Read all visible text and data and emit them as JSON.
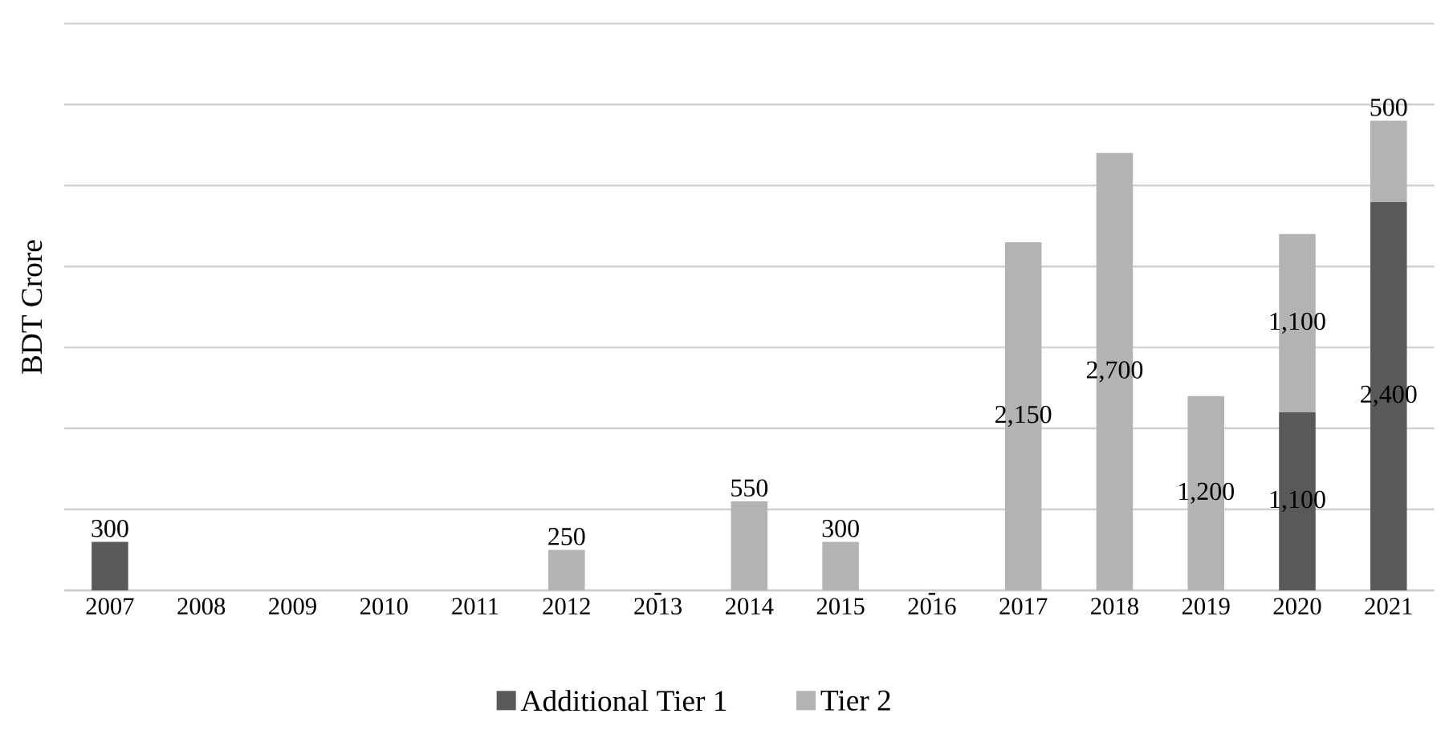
{
  "chart_data": {
    "type": "bar",
    "stacked": true,
    "ylabel": "BDT Crore",
    "categories": [
      "2007",
      "2008",
      "2009",
      "2010",
      "2011",
      "2012",
      "2013",
      "2014",
      "2015",
      "2016",
      "2017",
      "2018",
      "2019",
      "2020",
      "2021"
    ],
    "series": [
      {
        "name": "Additional Tier 1",
        "color": "#595959",
        "values": [
          300,
          null,
          null,
          null,
          null,
          null,
          null,
          null,
          null,
          null,
          null,
          null,
          null,
          1100,
          2400
        ],
        "value_labels": [
          "300",
          null,
          null,
          null,
          null,
          null,
          null,
          null,
          null,
          null,
          null,
          null,
          null,
          "1,100",
          "2,400"
        ]
      },
      {
        "name": "Tier 2",
        "color": "#b3b3b3",
        "values": [
          null,
          null,
          null,
          null,
          null,
          250,
          0,
          550,
          300,
          0,
          2150,
          2700,
          1200,
          1100,
          500
        ],
        "value_labels": [
          null,
          null,
          null,
          null,
          null,
          "250",
          "-",
          "550",
          "300",
          "-",
          "2,150",
          "2,700",
          "1,200",
          "1,100",
          "500"
        ]
      }
    ],
    "ylim": [
      0,
      3500
    ],
    "yticks": [
      {
        "value": 0,
        "label": null
      },
      {
        "value": 500,
        "label": null
      },
      {
        "value": 1000,
        "label": null
      },
      {
        "value": 1500,
        "label": null
      },
      {
        "value": 2000,
        "label": null
      },
      {
        "value": 2500,
        "label": null
      },
      {
        "value": 3000,
        "label": null
      },
      {
        "value": 3500,
        "label": null
      }
    ],
    "tick_labels": "x",
    "grid": "y",
    "legend": "bottom"
  }
}
